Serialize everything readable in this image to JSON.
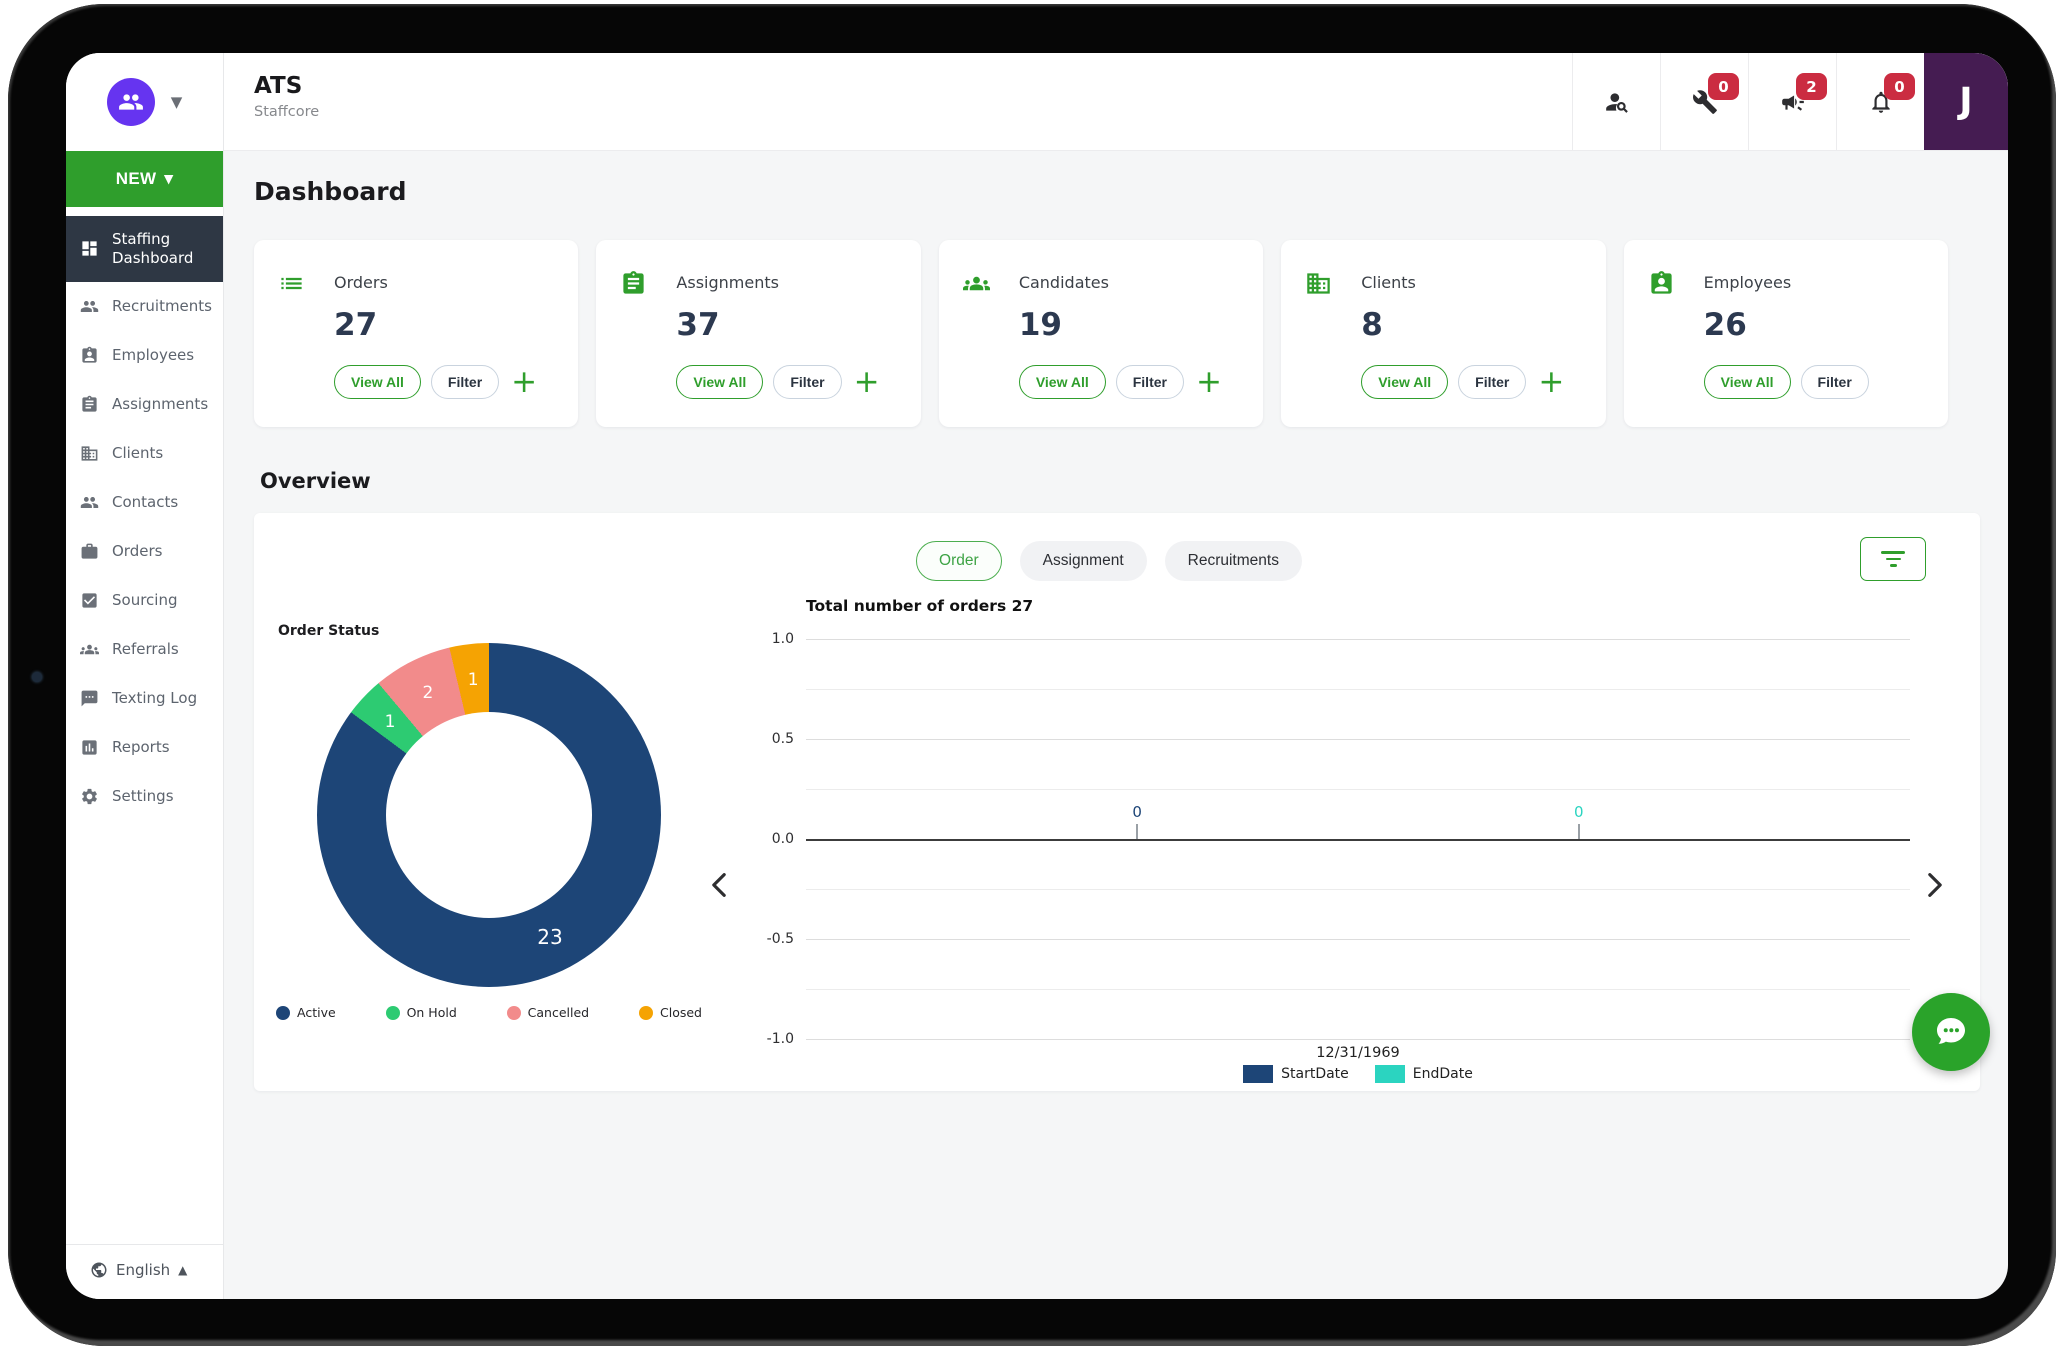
{
  "colors": {
    "accent_green": "#2f9e2c",
    "badge_red": "#cb2c41",
    "navy": "#1d4577",
    "teal": "#2fd9c4",
    "logo_purple": "#6634f0",
    "avatar_purple": "#451c52",
    "active_item_bg": "#2e3744"
  },
  "header": {
    "app_title": "ATS",
    "app_subtitle": "Staffcore",
    "avatar_initial": "J",
    "badges": {
      "tools": "0",
      "announcements": "2",
      "notifications": "0"
    }
  },
  "sidebar": {
    "new_button": "NEW",
    "active_item": "Staffing Dashboard",
    "items": [
      {
        "label": "Recruitments"
      },
      {
        "label": "Employees"
      },
      {
        "label": "Assignments"
      },
      {
        "label": "Clients"
      },
      {
        "label": "Contacts"
      },
      {
        "label": "Orders"
      },
      {
        "label": "Sourcing"
      },
      {
        "label": "Referrals"
      },
      {
        "label": "Texting Log"
      },
      {
        "label": "Reports"
      },
      {
        "label": "Settings"
      }
    ],
    "language": "English"
  },
  "page": {
    "title": "Dashboard",
    "section_title": "Overview"
  },
  "stats": {
    "view_all_label": "View All",
    "filter_label": "Filter",
    "add_label": "+",
    "cards": [
      {
        "label": "Orders",
        "value": "27"
      },
      {
        "label": "Assignments",
        "value": "37"
      },
      {
        "label": "Candidates",
        "value": "19"
      },
      {
        "label": "Clients",
        "value": "8"
      },
      {
        "label": "Employees",
        "value": "26"
      }
    ]
  },
  "overview": {
    "tabs": [
      {
        "label": "Order",
        "active": true
      },
      {
        "label": "Assignment",
        "active": false
      },
      {
        "label": "Recruitments",
        "active": false
      }
    ]
  },
  "chart_data": [
    {
      "type": "pie",
      "donut": true,
      "title": "Order Status",
      "labels": [
        "Active",
        "On Hold",
        "Cancelled",
        "Closed"
      ],
      "values": [
        23,
        1,
        2,
        1
      ],
      "colors": [
        "#1d4577",
        "#2dcb72",
        "#f28b8b",
        "#f5a303"
      ],
      "legend_position": "bottom"
    },
    {
      "type": "bar",
      "title": "Total number of orders 27",
      "x": [
        "12/31/1969"
      ],
      "series": [
        {
          "name": "StartDate",
          "values": [
            0
          ],
          "color": "#1d4577"
        },
        {
          "name": "EndDate",
          "values": [
            0
          ],
          "color": "#2bd4c0"
        }
      ],
      "ylim": [
        -1,
        1
      ],
      "yticks": [
        1.0,
        0.5,
        0.0,
        -0.5,
        -1.0
      ],
      "grid": true,
      "legend_position": "bottom"
    }
  ]
}
